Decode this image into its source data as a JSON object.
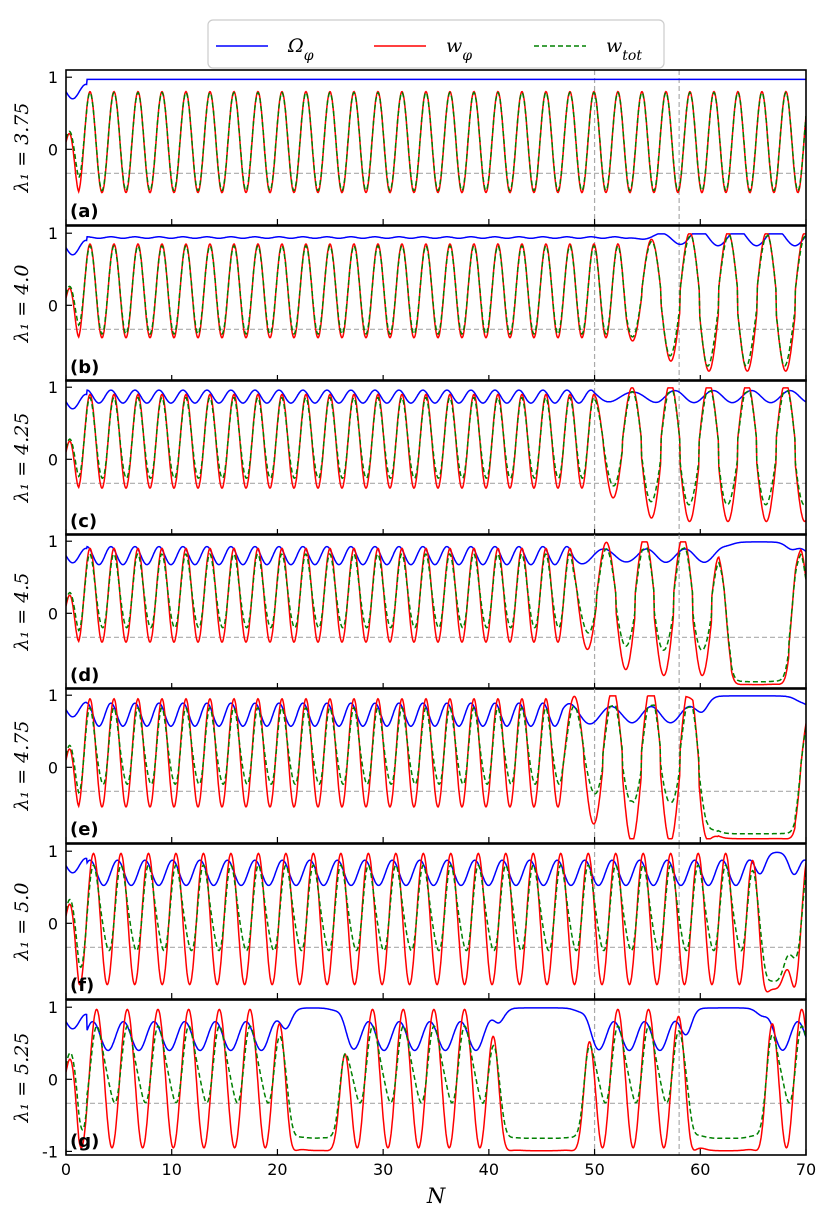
{
  "chart_data": {
    "type": "line",
    "xlabel": "N",
    "xlim": [
      0,
      70
    ],
    "xticks": [
      0,
      10,
      20,
      30,
      40,
      50,
      60,
      70
    ],
    "ylim": [
      -1.05,
      1.1
    ],
    "yticks": [
      {
        "v": 1,
        "label": "1"
      },
      {
        "v": 0,
        "label": "0"
      }
    ],
    "yticks_last_panel": [
      {
        "v": 1,
        "label": "1"
      },
      {
        "v": 0,
        "label": "0"
      },
      {
        "v": -1,
        "label": "-1"
      }
    ],
    "reference_lines": {
      "vertical_N": [
        50,
        58
      ],
      "horizontal_w": -0.333
    },
    "legend": [
      {
        "key": "omega",
        "label": "Ω_φ",
        "color": "#0000ff",
        "style": "solid"
      },
      {
        "key": "wphi",
        "label": "w_φ",
        "color": "#ff0000",
        "style": "solid"
      },
      {
        "key": "wtot",
        "label": "w_tot",
        "color": "#008000",
        "style": "dashed"
      }
    ],
    "panels": [
      {
        "letter": "(a)",
        "ylabel": "λ₁ = 3.75",
        "lambda1": 3.75,
        "wphi_oscillation": {
          "period": 2.27,
          "max": 0.8,
          "min": -0.6
        },
        "wtot_lag_factor": 0.0,
        "omega_mean": 0.97,
        "omega_dip_amplitude": 0.0,
        "instability_start_N": null,
        "freeze_segments": []
      },
      {
        "letter": "(b)",
        "ylabel": "λ₁ = 4.0",
        "lambda1": 4.0,
        "wphi_oscillation": {
          "period": 2.27,
          "max": 0.85,
          "min": -0.45
        },
        "wtot_lag_factor": 0.0,
        "omega_mean": 0.94,
        "omega_dip_amplitude": 0.02,
        "instability_start_N": 53,
        "freeze_segments": []
      },
      {
        "letter": "(c)",
        "ylabel": "λ₁ = 4.25",
        "lambda1": 4.25,
        "wphi_oscillation": {
          "period": 2.27,
          "max": 0.9,
          "min": -0.4
        },
        "wtot_lag_factor": 0.05,
        "omega_mean": 0.87,
        "omega_dip_amplitude": 0.18,
        "instability_start_N": 50,
        "freeze_segments": []
      },
      {
        "letter": "(d)",
        "ylabel": "λ₁ = 4.5",
        "lambda1": 4.5,
        "wphi_oscillation": {
          "period": 2.27,
          "max": 0.9,
          "min": -0.4
        },
        "wtot_lag_factor": 0.1,
        "omega_mean": 0.8,
        "omega_dip_amplitude": 0.25,
        "instability_start_N": 48,
        "freeze_segments": [
          [
            62.5,
            68.5
          ]
        ]
      },
      {
        "letter": "(e)",
        "ylabel": "λ₁ = 4.75",
        "lambda1": 4.75,
        "wphi_oscillation": {
          "period": 2.27,
          "max": 0.95,
          "min": -0.55
        },
        "wtot_lag_factor": 0.2,
        "omega_mean": 0.73,
        "omega_dip_amplitude": 0.32,
        "instability_start_N": 47,
        "freeze_segments": [
          [
            60.5,
            69.5
          ]
        ]
      },
      {
        "letter": "(f)",
        "ylabel": "λ₁ = 5.0",
        "lambda1": 5.0,
        "wphi_oscillation": {
          "period": 2.6,
          "max": 0.97,
          "min": -0.85
        },
        "wtot_lag_factor": 0.35,
        "omega_mean": 0.7,
        "omega_dip_amplitude": 0.35,
        "instability_start_N": null,
        "freeze_segments": [
          [
            66,
            68.5
          ]
        ]
      },
      {
        "letter": "(g)",
        "ylabel": "λ₁ = 5.25",
        "lambda1": 5.25,
        "wphi_oscillation": {
          "period": 2.9,
          "max": 0.97,
          "min": -0.95
        },
        "wtot_lag_factor": 0.55,
        "omega_mean": 0.6,
        "omega_dip_amplitude": 0.4,
        "instability_start_N": null,
        "freeze_segments": [
          [
            21,
            26
          ],
          [
            41,
            49
          ],
          [
            59,
            66
          ]
        ]
      }
    ]
  }
}
